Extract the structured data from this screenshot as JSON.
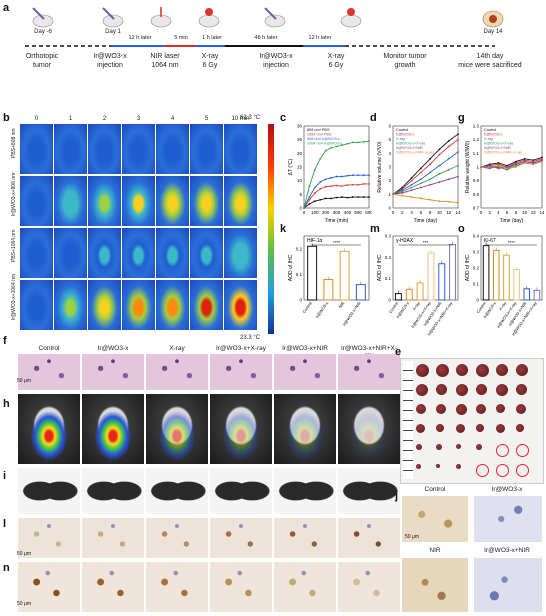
{
  "panels": {
    "a": "a",
    "b": "b",
    "c": "c",
    "d": "d",
    "g": "g",
    "k": "k",
    "m": "m",
    "o": "o",
    "f": "f",
    "e": "e",
    "h": "h",
    "i": "i",
    "j": "j",
    "l": "l",
    "n": "n"
  },
  "timeline": {
    "days": [
      "Day -6",
      "Day 1",
      "Day 14"
    ],
    "notes": [
      "12 h later",
      "5 min",
      "1 h later",
      "48 h later",
      "12 h later"
    ],
    "steps": [
      "Orthotopic\ntumor",
      "Ir@WO3-x\ninjection",
      "NIR laser\n1064 nm",
      "X-ray\n6 Gy",
      "Ir@WO3-x\ninjection",
      "X-ray\n6 Gy",
      "Monitor tumor\ngrowth",
      "14th day\nmice were sacrificed"
    ],
    "colors": {
      "black": "#111111",
      "red": "#e32b2b",
      "blue": "#2a5fd6"
    }
  },
  "thermal": {
    "times": [
      "0",
      "1",
      "2",
      "3",
      "4",
      "5",
      "10 min"
    ],
    "rows": [
      "PBS+808 nm",
      "Ir@WO3-x+808 nm",
      "PBS+1064 nm",
      "Ir@WO3-x+1064 nm"
    ],
    "scale_max": "62.3 °C",
    "scale_min": "23.3 °C"
  },
  "charts": [
    {
      "id": "c",
      "chart_data": {
        "type": "line",
        "xlabel": "Time (min)",
        "ylabel": "ΔT (°C)",
        "xlim": [
          0,
          600
        ],
        "ylim": [
          0,
          30
        ],
        "xticks": [
          0,
          100,
          200,
          300,
          400,
          500,
          600
        ],
        "yticks": [
          0,
          5,
          10,
          15,
          20,
          25,
          30
        ],
        "x": [
          0,
          50,
          100,
          150,
          200,
          250,
          300,
          350,
          400,
          450,
          500,
          550,
          600
        ],
        "series": [
          {
            "name": "808 nm+PBS",
            "color": "#111111",
            "values": [
              0,
              1.5,
              2.5,
              3,
              3.5,
              3.5,
              3.8,
              4,
              3.8,
              4,
              4,
              4,
              4
            ]
          },
          {
            "name": "1064 nm+PBS",
            "color": "#d9363e",
            "values": [
              0,
              3,
              5.5,
              7,
              7.8,
              8,
              8.2,
              8,
              8.4,
              8.5,
              8.5,
              8.8,
              8.8
            ]
          },
          {
            "name": "808 nm+Ir@WO3-x",
            "color": "#2a5fd6",
            "values": [
              0,
              4,
              7.5,
              9.5,
              10.5,
              11,
              11.5,
              11.5,
              11.8,
              12,
              12,
              12,
              12
            ]
          },
          {
            "name": "1064 nm+Ir@WO3-x",
            "color": "#2e9b49",
            "values": [
              0,
              8,
              14,
              18,
              21,
              22,
              22.5,
              23,
              23.5,
              24,
              24,
              24.2,
              24.5
            ]
          }
        ]
      }
    },
    {
      "id": "d",
      "chart_data": {
        "type": "line",
        "xlabel": "Time (day)",
        "ylabel": "Relative volume (V/V0)",
        "xlim": [
          0,
          14
        ],
        "ylim": [
          0,
          6
        ],
        "xticks": [
          0,
          2,
          4,
          6,
          8,
          10,
          12,
          14
        ],
        "yticks": [
          0,
          1,
          2,
          3,
          4,
          5,
          6
        ],
        "x": [
          0,
          2,
          4,
          6,
          8,
          10,
          12,
          14
        ],
        "series": [
          {
            "name": "Control",
            "color": "#111111",
            "values": [
              1,
              1.5,
              2.2,
              2.9,
              3.6,
              4.3,
              4.9,
              5.4
            ]
          },
          {
            "name": "Ir@WO3-x",
            "color": "#d9363e",
            "values": [
              1,
              1.4,
              2,
              2.6,
              3.2,
              3.9,
              4.5,
              5
            ]
          },
          {
            "name": "X-ray",
            "color": "#2a5fd6",
            "values": [
              1,
              1.3,
              1.7,
              2.1,
              2.6,
              3.1,
              3.6,
              4.1
            ]
          },
          {
            "name": "Ir@WO3-x+X-ray",
            "color": "#2e9b49",
            "values": [
              1,
              1.2,
              1.5,
              1.8,
              2.1,
              2.5,
              2.8,
              3.1
            ]
          },
          {
            "name": "Ir@WO3-x+NIR",
            "color": "#8b3aa8",
            "values": [
              1,
              1.1,
              1.3,
              1.5,
              1.7,
              1.9,
              2.1,
              2.3
            ]
          },
          {
            "name": "Ir@WO3-x+NIR+X-ray",
            "color": "#e08a1e",
            "values": [
              1,
              0.9,
              0.8,
              0.7,
              0.6,
              0.5,
              0.45,
              0.4
            ]
          }
        ]
      }
    },
    {
      "id": "g",
      "chart_data": {
        "type": "line",
        "xlabel": "Time (day)",
        "ylabel": "Relative weight (W/W0)",
        "xlim": [
          0,
          14
        ],
        "ylim": [
          0.7,
          1.3
        ],
        "xticks": [
          0,
          2,
          4,
          6,
          8,
          10,
          12,
          14
        ],
        "yticks": [
          0.7,
          0.8,
          0.9,
          1.0,
          1.1,
          1.2,
          1.3
        ],
        "x": [
          0,
          2,
          4,
          6,
          8,
          10,
          12,
          14
        ],
        "series": [
          {
            "name": "Control",
            "color": "#111111",
            "values": [
              1,
              1.02,
              1.03,
              1.01,
              1.04,
              1.06,
              1.05,
              1.07
            ]
          },
          {
            "name": "Ir@WO3-x",
            "color": "#d9363e",
            "values": [
              1,
              1.01,
              1.02,
              1.0,
              1.03,
              1.05,
              1.04,
              1.06
            ]
          },
          {
            "name": "X-ray",
            "color": "#2a5fd6",
            "values": [
              1,
              0.99,
              1.01,
              0.99,
              1.02,
              1.04,
              1.03,
              1.05
            ]
          },
          {
            "name": "Ir@WO3-x+X-ray",
            "color": "#2e9b49",
            "values": [
              1,
              1.0,
              1.0,
              0.98,
              1.01,
              1.03,
              1.02,
              1.04
            ]
          },
          {
            "name": "Ir@WO3-x+NIR",
            "color": "#8b3aa8",
            "values": [
              1,
              1.01,
              0.99,
              1.0,
              1.02,
              1.04,
              1.03,
              1.05
            ]
          },
          {
            "name": "Ir@WO3-x+NIR+X-ray",
            "color": "#e08a1e",
            "values": [
              1,
              1.0,
              1.01,
              0.99,
              1.0,
              1.03,
              1.02,
              1.04
            ]
          }
        ]
      }
    },
    {
      "id": "k",
      "chart_data": {
        "type": "bar",
        "title": "HIF-1α",
        "ylabel": "AOD of IHC",
        "ylim": [
          0,
          0.25
        ],
        "yticks": [
          0.0,
          0.1,
          0.2
        ],
        "categories": [
          "Control",
          "Ir@WO3-x",
          "NIR",
          "Ir@WO3-x+NIR"
        ],
        "values": [
          0.21,
          0.08,
          0.19,
          0.06
        ],
        "colors": [
          "#111111",
          "#e08a1e",
          "#d9a43a",
          "#2a5fd6"
        ],
        "sig": "****"
      }
    },
    {
      "id": "m",
      "chart_data": {
        "type": "bar",
        "title": "γ-H2AX",
        "ylabel": "AOD of IHC",
        "ylim": [
          0,
          0.3
        ],
        "yticks": [
          0.0,
          0.1,
          0.2,
          0.3
        ],
        "categories": [
          "Control",
          "Ir@WO3-x",
          "X-ray",
          "Ir@WO3-x+X-ray",
          "Ir@WO3-x+NIR",
          "Ir@WO3-x+NIR+X-ray"
        ],
        "values": [
          0.03,
          0.05,
          0.08,
          0.22,
          0.17,
          0.26
        ],
        "colors": [
          "#111111",
          "#e08a1e",
          "#d9a43a",
          "#f0c080",
          "#2a5fd6",
          "#7a6fc8"
        ],
        "sig": "***"
      }
    },
    {
      "id": "o",
      "chart_data": {
        "type": "bar",
        "title": "Ki-67",
        "ylabel": "AOD of IHC",
        "ylim": [
          0,
          0.4
        ],
        "yticks": [
          0.0,
          0.1,
          0.2,
          0.3,
          0.4
        ],
        "categories": [
          "Control",
          "Ir@WO3-x",
          "X-ray",
          "Ir@WO3-x+X-ray",
          "Ir@WO3-x+NIR",
          "Ir@WO3-x+NIR+X-ray"
        ],
        "values": [
          0.34,
          0.31,
          0.28,
          0.19,
          0.07,
          0.06
        ],
        "colors": [
          "#111111",
          "#e08a1e",
          "#d9a43a",
          "#f0c080",
          "#2a5fd6",
          "#7a6fc8"
        ],
        "sig": "****"
      }
    }
  ],
  "groups": [
    "Control",
    "Ir@WO3-x",
    "X-ray",
    "Ir@WO3-x+X-ray",
    "Ir@WO3-x+NIR",
    "Ir@WO3-x+NIR+X-ray"
  ],
  "scale_bar": "50 μm",
  "j_labels": [
    "Control",
    "Ir@WO3-x",
    "NIR",
    "Ir@WO3-x+NIR"
  ]
}
